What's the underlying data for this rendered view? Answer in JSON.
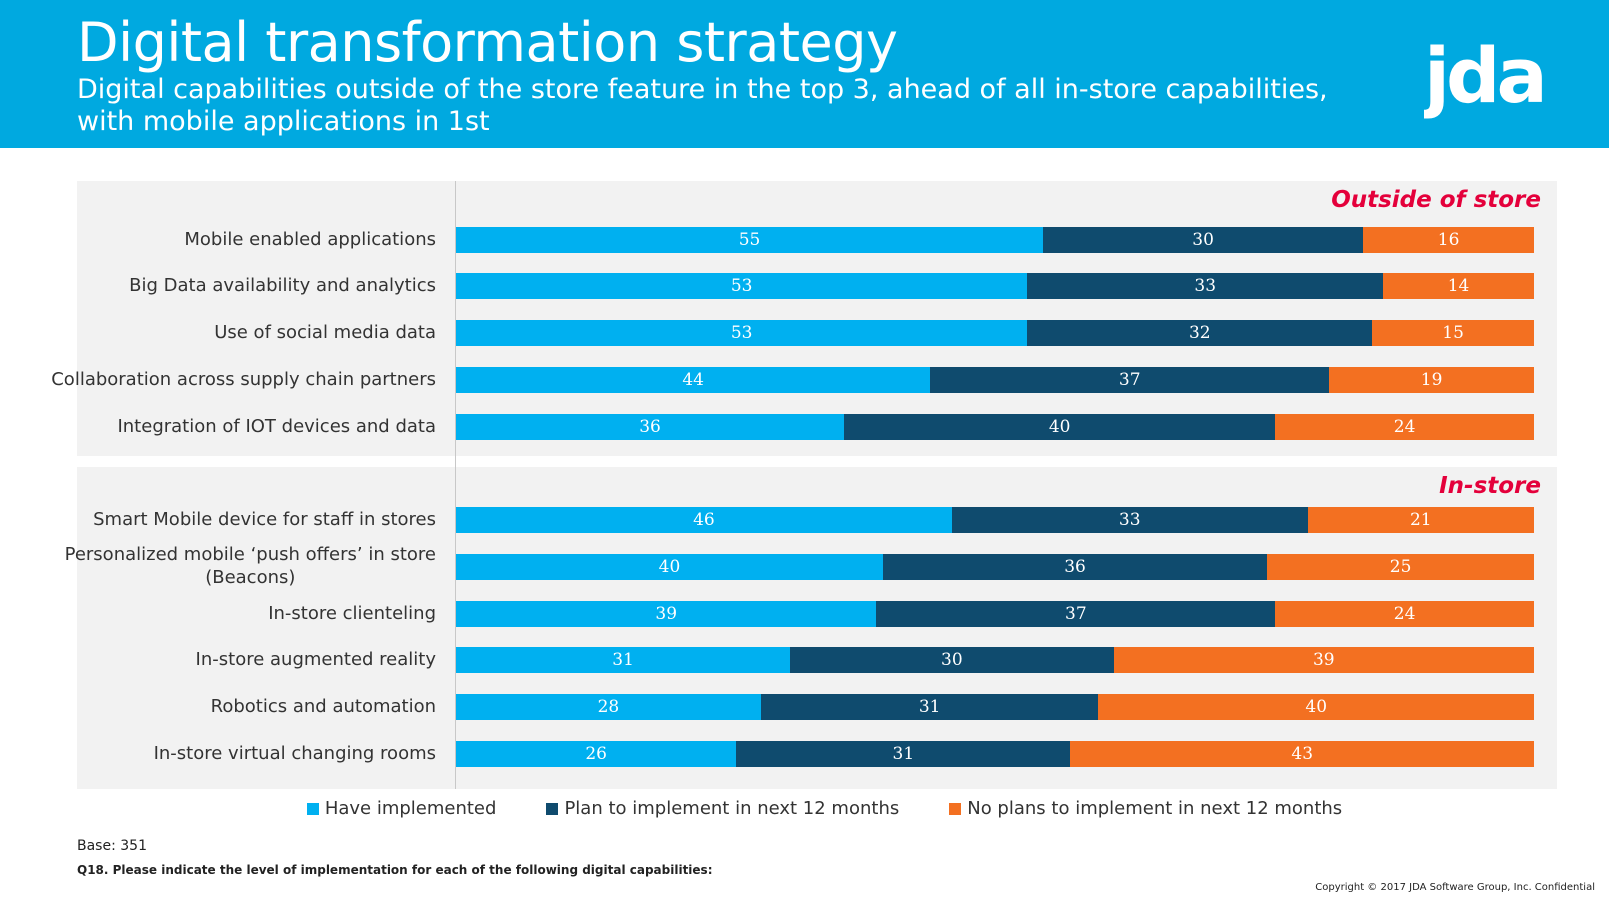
{
  "header": {
    "title": "Digital transformation strategy",
    "subtitle": "Digital capabilities outside of the store feature in the top 3, ahead of all in-store capabilities, with mobile applications in 1st",
    "logo_text": "jda."
  },
  "colors": {
    "header_bg": "#00a9e0",
    "have_implemented": "#00b0f0",
    "plan_to_implement": "#0f4b6e",
    "no_plans": "#f37021",
    "section_label": "#e4003b",
    "panel_bg": "#f2f2f2"
  },
  "chart_data": {
    "type": "bar",
    "orientation": "horizontal",
    "stacked": true,
    "xlim": [
      0,
      100
    ],
    "legend_position": "bottom",
    "groups": [
      {
        "name": "Outside of store",
        "categories": [
          "Mobile enabled applications",
          "Big Data availability and analytics",
          "Use of social media data",
          "Collaboration across supply chain partners",
          "Integration of IOT devices and data"
        ]
      },
      {
        "name": "In-store",
        "categories": [
          "Smart Mobile device for staff in stores",
          "Personalized mobile ‘push offers’ in store (Beacons)",
          "In-store clienteling",
          "In-store augmented reality",
          "Robotics and automation",
          "In-store virtual changing rooms"
        ]
      }
    ],
    "categories": [
      "Mobile enabled applications",
      "Big Data availability and analytics",
      "Use of social media data",
      "Collaboration across supply chain partners",
      "Integration of IOT devices and data",
      "Smart Mobile device for staff in stores",
      "Personalized mobile ‘push offers’ in store (Beacons)",
      "In-store clienteling",
      "In-store augmented reality",
      "Robotics and automation",
      "In-store virtual changing rooms"
    ],
    "series": [
      {
        "name": "Have implemented",
        "values": [
          55,
          53,
          53,
          44,
          36,
          46,
          40,
          39,
          31,
          28,
          26
        ]
      },
      {
        "name": "Plan to implement in next 12 months",
        "values": [
          30,
          33,
          32,
          37,
          40,
          33,
          36,
          37,
          30,
          31,
          31
        ]
      },
      {
        "name": "No plans to implement in next 12 months",
        "values": [
          16,
          14,
          15,
          19,
          24,
          21,
          25,
          24,
          39,
          40,
          43
        ]
      }
    ]
  },
  "footer": {
    "base": "Base: 351",
    "question": "Q18. Please indicate the level of implementation for each of the following digital capabilities:",
    "copyright": "Copyright © 2017 JDA Software Group, Inc. Confidential"
  }
}
